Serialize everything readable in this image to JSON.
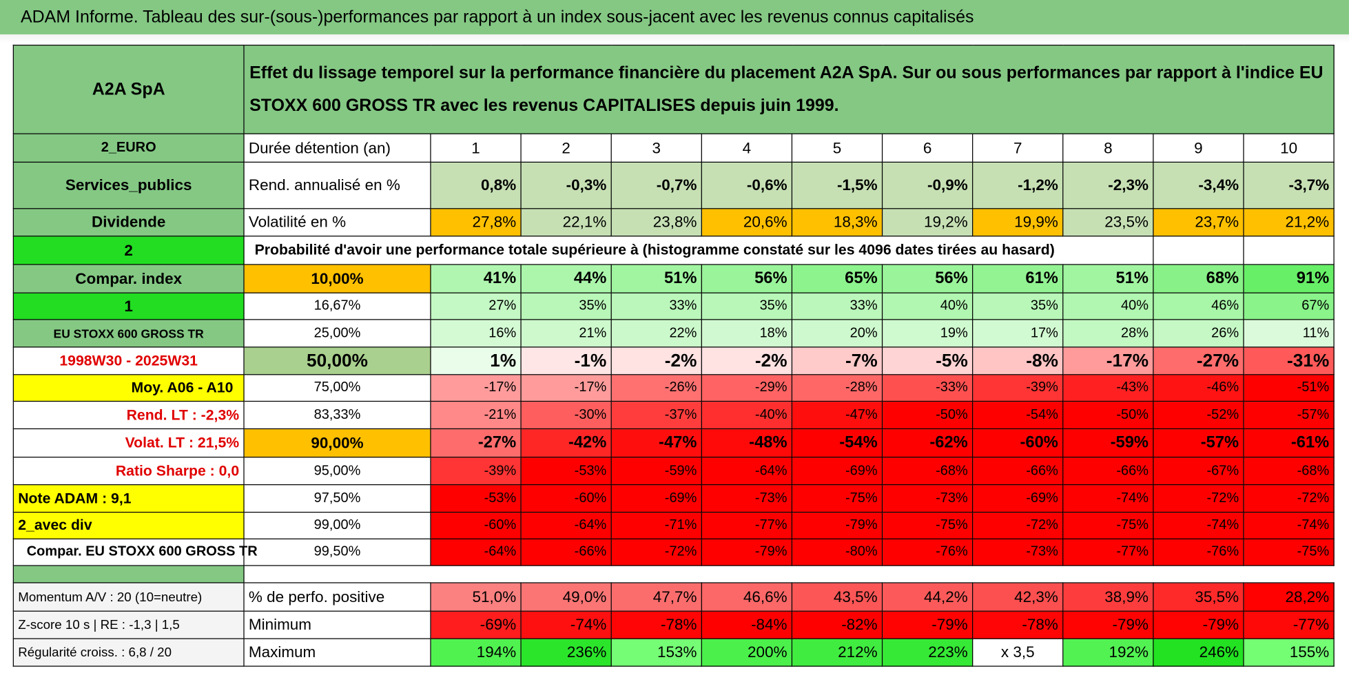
{
  "title": "ADAM Informe. Tableau des sur-(sous-)performances par rapport à un index sous-jacent avec les revenus connus capitalisés",
  "header": {
    "name": "A2A SpA",
    "description": "Effet du lissage temporel sur la performance financière du placement A2A SpA. Sur ou sous performances par rapport à l'indice EU STOXX 600 GROSS TR avec les revenus CAPITALISES depuis juin 1999."
  },
  "holding_row": {
    "side": "2_EURO",
    "label": "Durée détention (an)",
    "values": [
      1,
      2,
      3,
      4,
      5,
      6,
      7,
      8,
      9,
      10
    ]
  },
  "return_row": {
    "side": "Services_publics",
    "label": "Rend. annualisé en %",
    "values": [
      "0,8%",
      "-0,3%",
      "-0,7%",
      "-0,6%",
      "-1,5%",
      "-0,9%",
      "-1,2%",
      "-2,3%",
      "-3,4%",
      "-3,7%"
    ]
  },
  "volatility_row": {
    "side": "Dividende",
    "label": "Volatilité en %",
    "values": [
      "27,8%",
      "22,1%",
      "23,8%",
      "20,6%",
      "18,3%",
      "19,2%",
      "19,9%",
      "23,5%",
      "23,7%",
      "21,2%"
    ]
  },
  "probability_row": {
    "side": "2",
    "label": "Probabilité d'avoir une performance totale supérieure à (histogramme constaté sur les 4096 dates tirées au hasard)"
  },
  "quantile_rows": [
    {
      "side": "Compar. index",
      "quantile": "10,00%",
      "values": [
        "41%",
        "44%",
        "51%",
        "56%",
        "65%",
        "56%",
        "61%",
        "51%",
        "68%",
        "91%"
      ]
    },
    {
      "side": "1",
      "quantile": "16,67%",
      "values": [
        "27%",
        "35%",
        "33%",
        "35%",
        "33%",
        "40%",
        "35%",
        "40%",
        "46%",
        "67%"
      ]
    },
    {
      "side": "EU STOXX 600 GROSS TR",
      "quantile": "25,00%",
      "values": [
        "16%",
        "21%",
        "22%",
        "18%",
        "20%",
        "19%",
        "17%",
        "28%",
        "26%",
        "11%"
      ]
    },
    {
      "side": "1998W30 - 2025W31",
      "quantile": "50,00%",
      "values": [
        "1%",
        "-1%",
        "-2%",
        "-2%",
        "-7%",
        "-5%",
        "-8%",
        "-17%",
        "-27%",
        "-31%"
      ]
    },
    {
      "side": "Moy. A06 - A10",
      "quantile": "75,00%",
      "values": [
        "-17%",
        "-17%",
        "-26%",
        "-29%",
        "-28%",
        "-33%",
        "-39%",
        "-43%",
        "-46%",
        "-51%"
      ]
    },
    {
      "side": "Rend. LT :   -2,3%",
      "quantile": "83,33%",
      "values": [
        "-21%",
        "-30%",
        "-37%",
        "-40%",
        "-47%",
        "-50%",
        "-54%",
        "-50%",
        "-52%",
        "-57%"
      ]
    },
    {
      "side": "Volat. LT :   21,5%",
      "quantile": "90,00%",
      "values": [
        "-27%",
        "-42%",
        "-47%",
        "-48%",
        "-54%",
        "-62%",
        "-60%",
        "-59%",
        "-57%",
        "-61%"
      ]
    },
    {
      "side": "Ratio Sharpe :    0,0",
      "quantile": "95,00%",
      "values": [
        "-39%",
        "-53%",
        "-59%",
        "-64%",
        "-69%",
        "-68%",
        "-66%",
        "-66%",
        "-67%",
        "-68%"
      ]
    },
    {
      "side": "Note ADAM : 9,1",
      "quantile": "97,50%",
      "values": [
        "-53%",
        "-60%",
        "-69%",
        "-73%",
        "-75%",
        "-73%",
        "-69%",
        "-74%",
        "-72%",
        "-72%"
      ]
    },
    {
      "side": "2_avec div",
      "quantile": "99,00%",
      "values": [
        "-60%",
        "-64%",
        "-71%",
        "-77%",
        "-79%",
        "-75%",
        "-72%",
        "-75%",
        "-74%",
        "-74%"
      ]
    },
    {
      "side": "Compar. EU STOXX 600 GROSS TR",
      "quantile": "99,50%",
      "values": [
        "-64%",
        "-66%",
        "-72%",
        "-79%",
        "-80%",
        "-76%",
        "-73%",
        "-77%",
        "-76%",
        "-75%"
      ]
    }
  ],
  "stats_rows": [
    {
      "side": "Momentum A/V : 20 (10=neutre)",
      "label": "% de perfo. positive",
      "values": [
        "51,0%",
        "49,0%",
        "47,7%",
        "46,6%",
        "43,5%",
        "44,2%",
        "42,3%",
        "38,9%",
        "35,5%",
        "28,2%"
      ]
    },
    {
      "side": "Z-score 10 s | RE : -1,3 | 1,5",
      "label": "Minimum",
      "values": [
        "-69%",
        "-74%",
        "-78%",
        "-84%",
        "-82%",
        "-79%",
        "-78%",
        "-79%",
        "-79%",
        "-77%"
      ]
    },
    {
      "side": "Régularité croiss. : 6,8 / 20",
      "label": "Maximum",
      "values": [
        "194%",
        "236%",
        "153%",
        "200%",
        "212%",
        "223%",
        "x 3,5",
        "192%",
        "246%",
        "155%"
      ]
    }
  ]
}
